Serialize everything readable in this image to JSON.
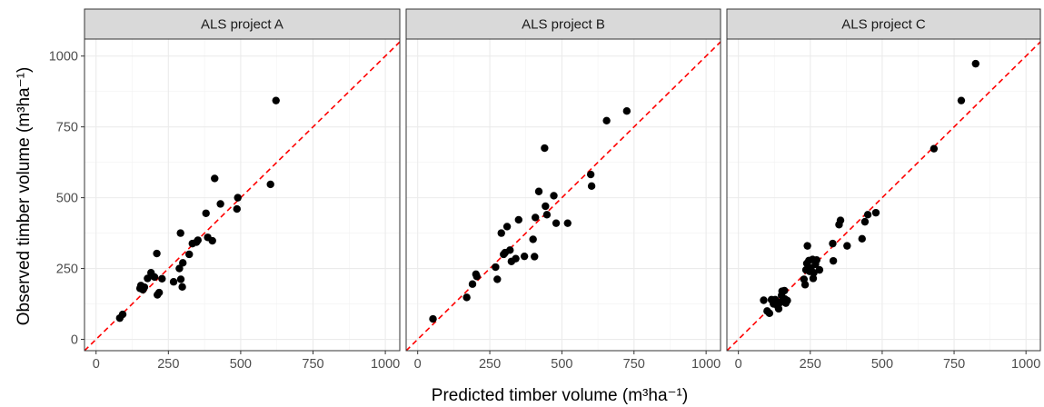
{
  "chart_data": {
    "type": "scatter",
    "xlabel": "Predicted timber volume (m³ha⁻¹)",
    "ylabel": "Observed timber volume (m³ha⁻¹)",
    "xlim": [
      -40,
      1050
    ],
    "ylim": [
      -40,
      1060
    ],
    "x_ticks": [
      0,
      250,
      500,
      750,
      1000
    ],
    "y_ticks": [
      0,
      250,
      500,
      750,
      1000
    ],
    "grid": true,
    "reference_line": {
      "type": "1:1",
      "color": "#ff0000",
      "style": "dashed"
    },
    "point_color": "#000000",
    "strip_fill": "#d9d9d9",
    "panels": [
      {
        "name": "ALS project A",
        "points": [
          [
            82,
            75
          ],
          [
            92,
            88
          ],
          [
            152,
            180
          ],
          [
            155,
            190
          ],
          [
            162,
            175
          ],
          [
            167,
            184
          ],
          [
            178,
            215
          ],
          [
            190,
            235
          ],
          [
            202,
            220
          ],
          [
            210,
            303
          ],
          [
            212,
            157
          ],
          [
            218,
            165
          ],
          [
            228,
            214
          ],
          [
            268,
            203
          ],
          [
            288,
            250
          ],
          [
            292,
            375
          ],
          [
            293,
            212
          ],
          [
            298,
            185
          ],
          [
            300,
            270
          ],
          [
            322,
            300
          ],
          [
            333,
            338
          ],
          [
            347,
            343
          ],
          [
            352,
            350
          ],
          [
            380,
            445
          ],
          [
            386,
            360
          ],
          [
            402,
            348
          ],
          [
            410,
            568
          ],
          [
            430,
            478
          ],
          [
            487,
            460
          ],
          [
            490,
            500
          ],
          [
            603,
            547
          ],
          [
            622,
            843
          ]
        ]
      },
      {
        "name": "ALS project B",
        "points": [
          [
            53,
            72
          ],
          [
            170,
            148
          ],
          [
            190,
            195
          ],
          [
            202,
            230
          ],
          [
            205,
            222
          ],
          [
            270,
            255
          ],
          [
            276,
            212
          ],
          [
            290,
            375
          ],
          [
            298,
            300
          ],
          [
            303,
            306
          ],
          [
            310,
            398
          ],
          [
            320,
            315
          ],
          [
            325,
            275
          ],
          [
            340,
            285
          ],
          [
            350,
            422
          ],
          [
            370,
            293
          ],
          [
            400,
            353
          ],
          [
            405,
            292
          ],
          [
            408,
            430
          ],
          [
            420,
            522
          ],
          [
            440,
            675
          ],
          [
            443,
            470
          ],
          [
            448,
            440
          ],
          [
            472,
            507
          ],
          [
            480,
            410
          ],
          [
            520,
            410
          ],
          [
            600,
            582
          ],
          [
            603,
            541
          ],
          [
            655,
            772
          ],
          [
            725,
            806
          ]
        ]
      },
      {
        "name": "ALS project C",
        "points": [
          [
            88,
            138
          ],
          [
            100,
            100
          ],
          [
            108,
            92
          ],
          [
            115,
            140
          ],
          [
            122,
            125
          ],
          [
            128,
            140
          ],
          [
            135,
            120
          ],
          [
            140,
            108
          ],
          [
            145,
            130
          ],
          [
            150,
            155
          ],
          [
            152,
            170
          ],
          [
            160,
            172
          ],
          [
            162,
            142
          ],
          [
            165,
            128
          ],
          [
            170,
            137
          ],
          [
            228,
            212
          ],
          [
            232,
            193
          ],
          [
            235,
            245
          ],
          [
            238,
            268
          ],
          [
            240,
            330
          ],
          [
            245,
            278
          ],
          [
            248,
            240
          ],
          [
            252,
            252
          ],
          [
            258,
            282
          ],
          [
            260,
            215
          ],
          [
            262,
            235
          ],
          [
            268,
            265
          ],
          [
            272,
            280
          ],
          [
            282,
            245
          ],
          [
            328,
            338
          ],
          [
            330,
            277
          ],
          [
            350,
            405
          ],
          [
            355,
            420
          ],
          [
            378,
            330
          ],
          [
            430,
            355
          ],
          [
            440,
            415
          ],
          [
            450,
            440
          ],
          [
            478,
            447
          ],
          [
            680,
            673
          ],
          [
            775,
            843
          ],
          [
            825,
            973
          ]
        ]
      }
    ]
  }
}
